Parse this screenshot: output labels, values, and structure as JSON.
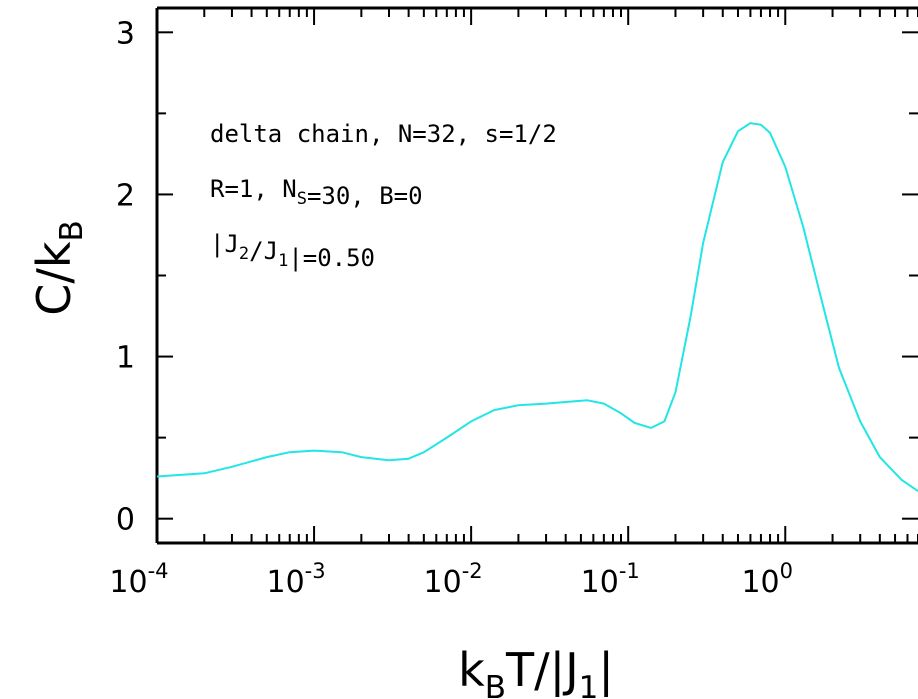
{
  "chart_data": {
    "type": "line",
    "xscale": "log",
    "xlim": [
      0.0001,
      7
    ],
    "ylim": [
      -0.15,
      3.15
    ],
    "grid": false,
    "xlabel": {
      "main": "k",
      "sub1": "B",
      "mid": "T/|J",
      "sub2": "1",
      "end": "|"
    },
    "ylabel": {
      "main": "C/k",
      "sub": "B"
    },
    "x_ticks": [
      {
        "base": "10",
        "exp": "-4",
        "value": 0.0001
      },
      {
        "base": "10",
        "exp": "-3",
        "value": 0.001
      },
      {
        "base": "10",
        "exp": "-2",
        "value": 0.01
      },
      {
        "base": "10",
        "exp": "-1",
        "value": 0.1
      },
      {
        "base": "10",
        "exp": "0",
        "value": 1
      }
    ],
    "y_ticks": [
      {
        "label": "0",
        "value": 0
      },
      {
        "label": "1",
        "value": 1
      },
      {
        "label": "2",
        "value": 2
      },
      {
        "label": "3",
        "value": 3
      }
    ],
    "annotations": [
      {
        "parts": [
          {
            "t": "delta chain, N=32, s=1/2"
          }
        ]
      },
      {
        "parts": [
          {
            "t": "R=1, N"
          },
          {
            "t": "S",
            "sub": true
          },
          {
            "t": "=30, B=0"
          }
        ]
      },
      {
        "parts": [
          {
            "t": "|J"
          },
          {
            "t": "2",
            "sub": true
          },
          {
            "t": "/J"
          },
          {
            "t": "1",
            "sub": true
          },
          {
            "t": "|=0.50"
          }
        ]
      }
    ],
    "series": [
      {
        "color": "#22e5e5",
        "x": [
          0.0001,
          0.0002,
          0.0003,
          0.0005,
          0.0007,
          0.001,
          0.0015,
          0.002,
          0.003,
          0.004,
          0.005,
          0.007,
          0.01,
          0.014,
          0.02,
          0.03,
          0.04,
          0.055,
          0.07,
          0.09,
          0.11,
          0.14,
          0.17,
          0.2,
          0.25,
          0.3,
          0.4,
          0.5,
          0.6,
          0.7,
          0.8,
          1.0,
          1.3,
          1.7,
          2.2,
          3.0,
          4.0,
          5.5,
          7.0
        ],
        "y": [
          0.26,
          0.28,
          0.32,
          0.38,
          0.41,
          0.42,
          0.41,
          0.38,
          0.36,
          0.37,
          0.41,
          0.5,
          0.6,
          0.67,
          0.7,
          0.71,
          0.72,
          0.73,
          0.71,
          0.65,
          0.59,
          0.56,
          0.6,
          0.78,
          1.25,
          1.7,
          2.2,
          2.39,
          2.44,
          2.43,
          2.38,
          2.17,
          1.8,
          1.35,
          0.93,
          0.6,
          0.38,
          0.24,
          0.17
        ]
      }
    ]
  }
}
